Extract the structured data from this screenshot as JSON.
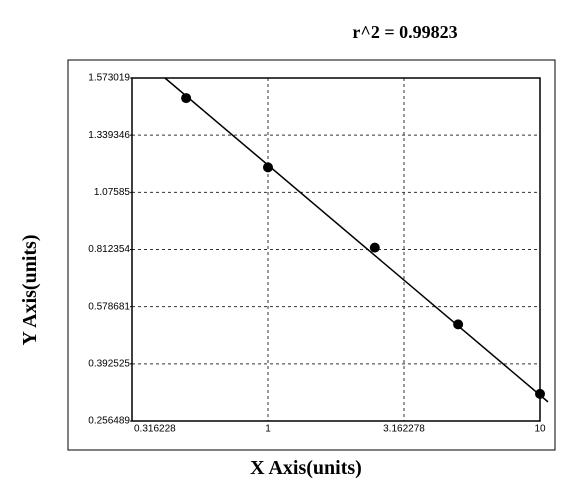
{
  "chart_data": {
    "type": "scatter",
    "annotation": "r^2 = 0.99823",
    "xlabel": "X Axis(units)",
    "ylabel": "Y Axis(units)",
    "xscale": "log",
    "xlim": [
      0.316228,
      10
    ],
    "xticks": [
      0.316228,
      1,
      3.162278,
      10
    ],
    "ylim": [
      0.256489,
      1.573019
    ],
    "yticks": [
      0.256489,
      0.392525,
      0.578681,
      0.812354,
      1.07585,
      1.339346,
      1.573019
    ],
    "grid": true,
    "color": "#000000",
    "x": [
      0.5,
      1,
      2.47,
      5,
      10
    ],
    "values": [
      1.491,
      1.191,
      0.821,
      0.521,
      0.321
    ],
    "fit_line": {
      "x": [
        0.418,
        10.7
      ],
      "values": [
        1.573019,
        0.302
      ]
    }
  }
}
